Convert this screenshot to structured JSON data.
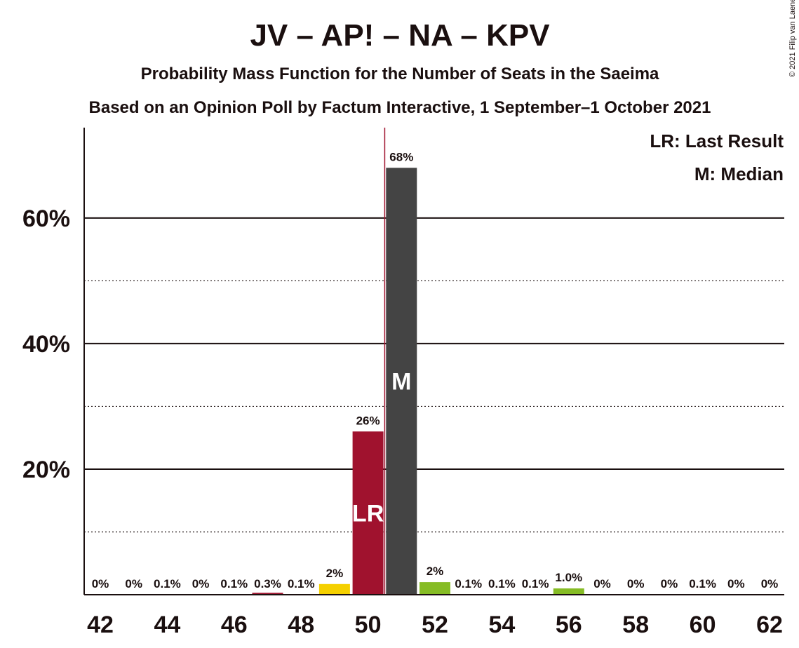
{
  "chart_data": {
    "type": "bar",
    "title": "JV – AP! – NA – KPV",
    "subtitle1": "Probability Mass Function for the Number of Seats in the Saeima",
    "subtitle2": "Based on an Opinion Poll by Factum Interactive, 1 September–1 October 2021",
    "copyright": "© 2021 Filip van Laenen",
    "legend": {
      "last_result": "LR: Last Result",
      "median": "M: Median",
      "placement": "top-right"
    },
    "x": [
      42,
      43,
      44,
      45,
      46,
      47,
      48,
      49,
      50,
      51,
      52,
      53,
      54,
      55,
      56,
      57,
      58,
      59,
      60,
      61,
      62
    ],
    "values": [
      0,
      0,
      0.1,
      0,
      0.1,
      0.3,
      0.1,
      1.7,
      26,
      68,
      2,
      0.1,
      0.1,
      0.1,
      1.0,
      0,
      0,
      0,
      0.1,
      0,
      0
    ],
    "labels": [
      "0%",
      "0%",
      "0.1%",
      "0%",
      "0.1%",
      "0.3%",
      "0.1%",
      "2%",
      "26%",
      "68%",
      "2%",
      "0.1%",
      "0.1%",
      "0.1%",
      "1.0%",
      "0%",
      "0%",
      "0%",
      "0.1%",
      "0%",
      "0%"
    ],
    "colors": [
      "#1a0f0f",
      "#1a0f0f",
      "#1a0f0f",
      "#1a0f0f",
      "#1a0f0f",
      "#a0122e",
      "#1a0f0f",
      "#f5d000",
      "#a0122e",
      "#444444",
      "#86bc25",
      "#1a0f0f",
      "#1a0f0f",
      "#1a0f0f",
      "#86bc25",
      "#1a0f0f",
      "#1a0f0f",
      "#1a0f0f",
      "#1a0f0f",
      "#1a0f0f",
      "#1a0f0f"
    ],
    "x_ticks": [
      42,
      44,
      46,
      48,
      50,
      52,
      54,
      56,
      58,
      60,
      62
    ],
    "y_ticks_major": [
      20,
      40,
      60
    ],
    "y_tick_labels": [
      "20%",
      "40%",
      "60%"
    ],
    "y_ticks_minor": [
      10,
      30,
      50
    ],
    "ylim": [
      0,
      74.4
    ],
    "last_result": {
      "seat": 50,
      "mark": "LR"
    },
    "median": {
      "seat": 51,
      "mark": "M"
    },
    "last_result_line_color": "#a0122e"
  }
}
